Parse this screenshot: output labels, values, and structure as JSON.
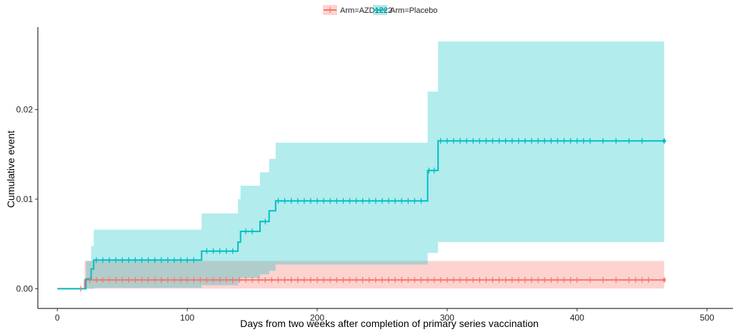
{
  "chart_data": {
    "type": "line",
    "subtype": "cumulative-incidence step curves with confidence bands and censoring ticks",
    "title": "",
    "xlabel": "Days from two weeks after completion of primary series vaccination",
    "ylabel": "Cumulative event",
    "xlim": [
      -15,
      520
    ],
    "ylim": [
      -0.0022,
      0.0292
    ],
    "x_ticks": [
      0,
      100,
      200,
      300,
      400,
      500
    ],
    "x_tick_labels": [
      "0",
      "100",
      "200",
      "300",
      "400",
      "500"
    ],
    "y_ticks": [
      0,
      0.01,
      0.02
    ],
    "y_tick_labels": [
      "0.00",
      "0.01",
      "0.02"
    ],
    "grid": false,
    "legend_position": "top-center",
    "series": [
      {
        "name": "Arm=AZD1222",
        "color": "#F8766D",
        "band_color": "#F8766D",
        "steps": [
          [
            0,
            0
          ],
          [
            21,
            0.00098
          ],
          [
            467,
            0.00098
          ]
        ],
        "band": [
          [
            0,
            0,
            0
          ],
          [
            20,
            0,
            0
          ],
          [
            21,
            0.0,
            0.0031
          ],
          [
            140,
            0.0,
            0.0031
          ],
          [
            168,
            0.0,
            0.0031
          ],
          [
            467,
            0.0,
            0.0031
          ]
        ],
        "band_lower": [
          [
            0,
            0
          ],
          [
            140,
            0
          ],
          [
            141,
            2e-05
          ],
          [
            467,
            2e-05
          ]
        ],
        "band_upper": [
          [
            0,
            0
          ],
          [
            20,
            0
          ],
          [
            21,
            0.0031
          ],
          [
            467,
            0.0031
          ]
        ],
        "censor_ticks": [
          18,
          25,
          30,
          35,
          40,
          45,
          50,
          55,
          60,
          65,
          70,
          75,
          80,
          85,
          90,
          95,
          100,
          105,
          110,
          115,
          120,
          125,
          130,
          135,
          140,
          145,
          150,
          155,
          160,
          165,
          170,
          175,
          180,
          185,
          190,
          195,
          200,
          205,
          210,
          215,
          220,
          225,
          230,
          235,
          240,
          245,
          250,
          255,
          260,
          265,
          270,
          275,
          280,
          285,
          290,
          295,
          300,
          305,
          310,
          315,
          320,
          325,
          330,
          335,
          340,
          345,
          350,
          355,
          360,
          365,
          370,
          375,
          380,
          385,
          390,
          395,
          400,
          410,
          420,
          430,
          440,
          445,
          450,
          455,
          467
        ]
      },
      {
        "name": "Arm=Placebo",
        "color": "#00BFC4",
        "band_color": "#00BFC4",
        "steps": [
          [
            0,
            0
          ],
          [
            21,
            0
          ],
          [
            22,
            0.0011
          ],
          [
            26,
            0.0022
          ],
          [
            28,
            0.0032
          ],
          [
            111,
            0.0042
          ],
          [
            139,
            0.0052
          ],
          [
            141,
            0.0064
          ],
          [
            156,
            0.0075
          ],
          [
            163,
            0.0087
          ],
          [
            168,
            0.0098
          ],
          [
            285,
            0.0132
          ],
          [
            293,
            0.0165
          ],
          [
            467,
            0.0165
          ]
        ],
        "band_upper": [
          [
            0,
            0
          ],
          [
            21,
            0
          ],
          [
            22,
            0.0031
          ],
          [
            26,
            0.0048
          ],
          [
            28,
            0.0066
          ],
          [
            111,
            0.0084
          ],
          [
            139,
            0.01
          ],
          [
            141,
            0.0115
          ],
          [
            156,
            0.013
          ],
          [
            163,
            0.0145
          ],
          [
            168,
            0.0163
          ],
          [
            285,
            0.022
          ],
          [
            293,
            0.0276
          ],
          [
            467,
            0.0276
          ]
        ],
        "band_lower": [
          [
            0,
            0
          ],
          [
            21,
            0
          ],
          [
            22,
            0.0
          ],
          [
            28,
            0.0001
          ],
          [
            111,
            0.0004
          ],
          [
            139,
            0.0008
          ],
          [
            141,
            0.0012
          ],
          [
            156,
            0.0016
          ],
          [
            163,
            0.002
          ],
          [
            168,
            0.0027
          ],
          [
            285,
            0.004
          ],
          [
            293,
            0.0052
          ],
          [
            467,
            0.0052
          ]
        ],
        "censor_ticks": [
          30,
          35,
          40,
          45,
          50,
          55,
          60,
          65,
          70,
          75,
          80,
          85,
          90,
          95,
          100,
          105,
          115,
          120,
          125,
          130,
          135,
          145,
          150,
          160,
          170,
          175,
          180,
          185,
          190,
          195,
          200,
          205,
          210,
          215,
          220,
          225,
          230,
          235,
          240,
          245,
          250,
          255,
          260,
          265,
          270,
          275,
          280,
          286,
          290,
          295,
          300,
          305,
          310,
          315,
          320,
          325,
          330,
          335,
          340,
          345,
          350,
          355,
          360,
          365,
          370,
          375,
          380,
          385,
          390,
          395,
          400,
          405,
          410,
          420,
          430,
          440,
          450,
          467
        ]
      }
    ]
  }
}
